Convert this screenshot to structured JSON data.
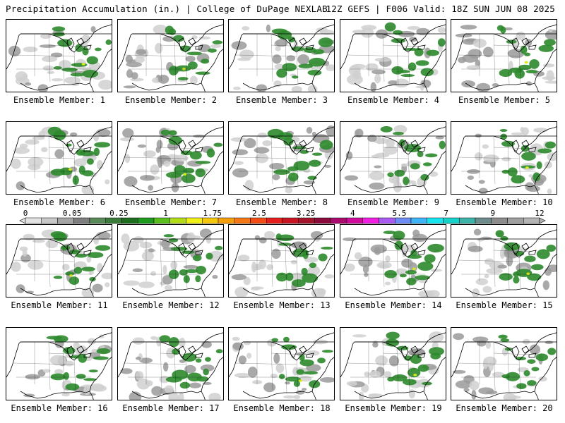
{
  "header": {
    "left": "Precipitation Accumulation (in.) | College of DuPage NEXLAB",
    "right": "12Z GEFS | F006 Valid: 18Z SUN JUN 08 2025"
  },
  "members": [
    {
      "label": "Ensemble Member: 1"
    },
    {
      "label": "Ensemble Member: 2"
    },
    {
      "label": "Ensemble Member: 3"
    },
    {
      "label": "Ensemble Member: 4"
    },
    {
      "label": "Ensemble Member: 5"
    },
    {
      "label": "Ensemble Member: 6"
    },
    {
      "label": "Ensemble Member: 7"
    },
    {
      "label": "Ensemble Member: 8"
    },
    {
      "label": "Ensemble Member: 9"
    },
    {
      "label": "Ensemble Member: 10"
    },
    {
      "label": "Ensemble Member: 11"
    },
    {
      "label": "Ensemble Member: 12"
    },
    {
      "label": "Ensemble Member: 13"
    },
    {
      "label": "Ensemble Member: 14"
    },
    {
      "label": "Ensemble Member: 15"
    },
    {
      "label": "Ensemble Member: 16"
    },
    {
      "label": "Ensemble Member: 17"
    },
    {
      "label": "Ensemble Member: 18"
    },
    {
      "label": "Ensemble Member: 19"
    },
    {
      "label": "Ensemble Member: 20"
    }
  ],
  "legend": {
    "labels": [
      "0",
      "0.05",
      "0.25",
      "1",
      "1.75",
      "2.5",
      "3.25",
      "4",
      "5.5",
      "7",
      "9",
      "12"
    ],
    "colors": [
      "#e3e3e3",
      "#c8c8c8",
      "#a5a5a5",
      "#7e7e7e",
      "#5a8a5a",
      "#3c7a3c",
      "#1f6e1f",
      "#1e9a1e",
      "#5abe1e",
      "#b4dc14",
      "#f0f014",
      "#f5c80a",
      "#f5a00a",
      "#f57814",
      "#f54b14",
      "#e61e1e",
      "#c81423",
      "#a5142d",
      "#8c0a3c",
      "#aa0a6e",
      "#d20a9b",
      "#f01ee1",
      "#aa5af0",
      "#6e8cf5",
      "#3cb4f5",
      "#14e6f0",
      "#14d2c8",
      "#3cb4aa",
      "#6e8c8c",
      "#8c8c8c",
      "#a0a0a0",
      "#b4b4b4"
    ]
  },
  "map_colors": {
    "light": "#d0d0d0",
    "mid": "#9a9a9a",
    "dark": "#2c8a2c",
    "bright": "#d8e81e"
  }
}
